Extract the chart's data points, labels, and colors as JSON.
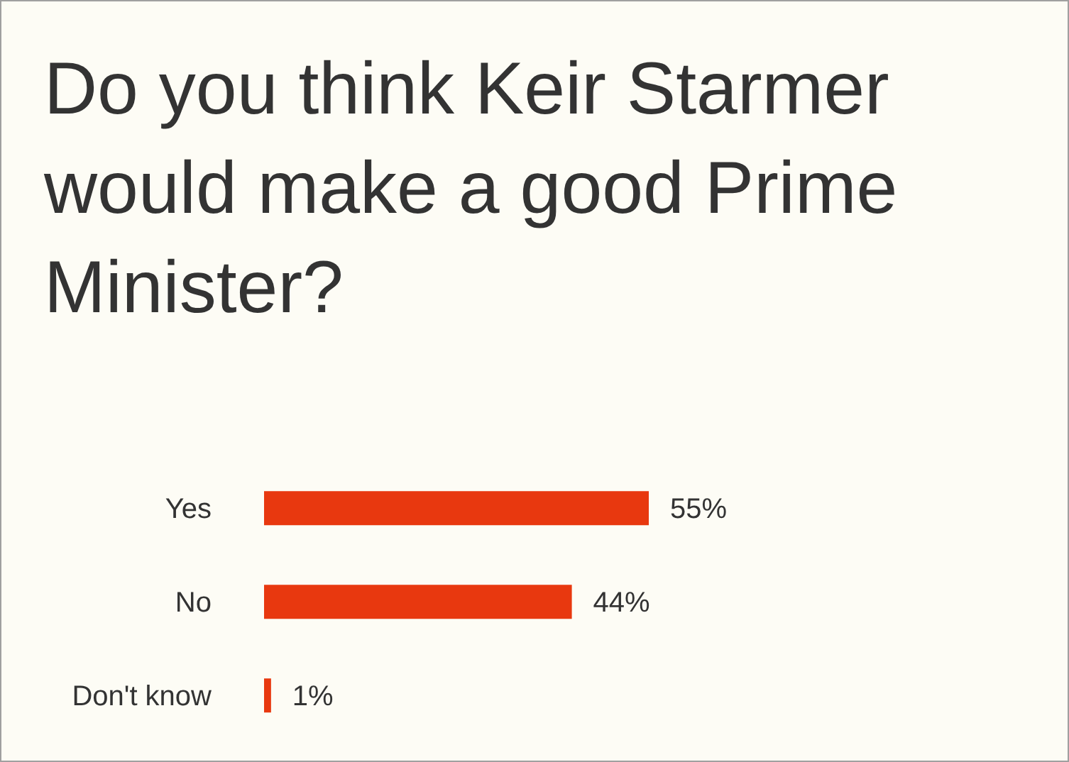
{
  "chart_data": {
    "type": "bar",
    "title": "Do you think Keir Starmer would make a good Prime Minister?",
    "orientation": "horizontal",
    "categories": [
      "Yes",
      "No",
      "Don't know"
    ],
    "values": [
      55,
      44,
      1
    ],
    "value_labels": [
      "55%",
      "44%",
      "1%"
    ],
    "color": "#e8380f"
  }
}
